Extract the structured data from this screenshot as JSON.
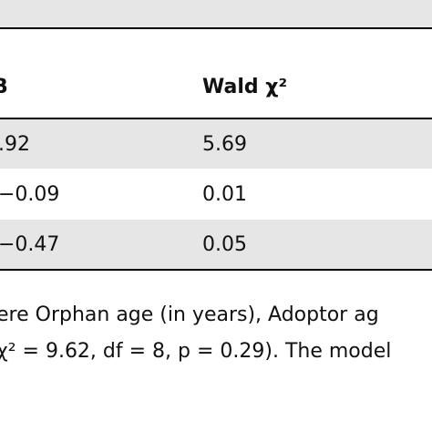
{
  "table": {
    "header": [
      "B",
      "Wald χ²"
    ],
    "rows": [
      [
        ".92",
        "5.69"
      ],
      [
        "−0.09",
        "0.01"
      ],
      [
        "−0.47",
        "0.05"
      ]
    ]
  },
  "caption": [
    "ere Orphan age (in years), Adoptor ag",
    "χ² = 9.62, df = 8, p = 0.29). The model"
  ]
}
